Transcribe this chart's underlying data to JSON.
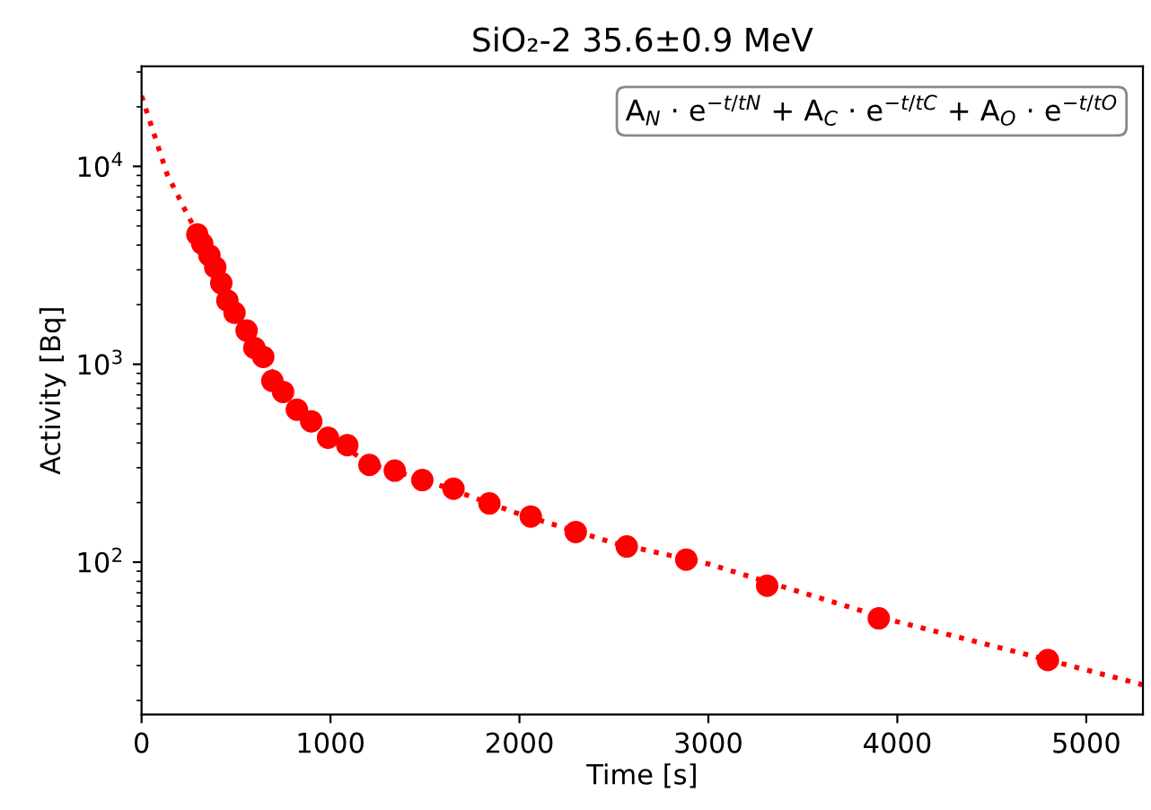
{
  "chart_data": {
    "type": "scatter",
    "title": "SiO₂-2 35.6±0.9 MeV",
    "xlabel": "Time [s]",
    "ylabel": "Activity [Bq]",
    "annotations": [
      "A$_{N}$ · e$^{−t/tN}$ + A$_{C}$ · e$^{−t/tC}$ + A$_{O}$ · e$^{−t/tO}$"
    ],
    "log": "y",
    "grid": false,
    "xlim": [
      0,
      5300
    ],
    "ylim": [
      17,
      32000
    ],
    "xticks": [
      0,
      1000,
      2000,
      3000,
      4000,
      5000
    ],
    "yticks": [
      {
        "value": 100,
        "label": "10$^{2}$"
      },
      {
        "value": 1000,
        "label": "10$^{3}$"
      },
      {
        "value": 10000,
        "label": "10$^{4}$"
      }
    ],
    "series": [
      {
        "color": "#ff0000",
        "marker": "circle",
        "x": [
          295,
          321,
          359,
          390,
          422,
          454,
          492,
          556,
          597,
          644,
          692,
          749,
          822,
          898,
          987,
          1089,
          1206,
          1340,
          1486,
          1651,
          1841,
          2060,
          2298,
          2568,
          2883,
          3311,
          3902,
          4797
        ],
        "values": [
          4530,
          4070,
          3550,
          3090,
          2570,
          2100,
          1820,
          1480,
          1210,
          1090,
          825,
          725,
          590,
          515,
          425,
          390,
          310,
          290,
          260,
          235,
          198,
          170,
          142,
          120,
          103,
          76,
          52,
          32
        ]
      },
      {
        "type": "line",
        "color": "#ff0000",
        "line_style": "dotted",
        "marker": "none",
        "x": [
          0,
          136,
          231,
          300,
          400,
          500,
          650,
          800,
          1000,
          1200,
          1500,
          2000,
          2500,
          3000,
          3500,
          4000,
          4800,
          5300
        ],
        "values": [
          22700,
          9100,
          6000,
          4500,
          2900,
          1800,
          1050,
          620,
          430,
          315,
          260,
          175,
          125,
          98,
          70,
          50,
          32,
          24
        ]
      }
    ]
  }
}
